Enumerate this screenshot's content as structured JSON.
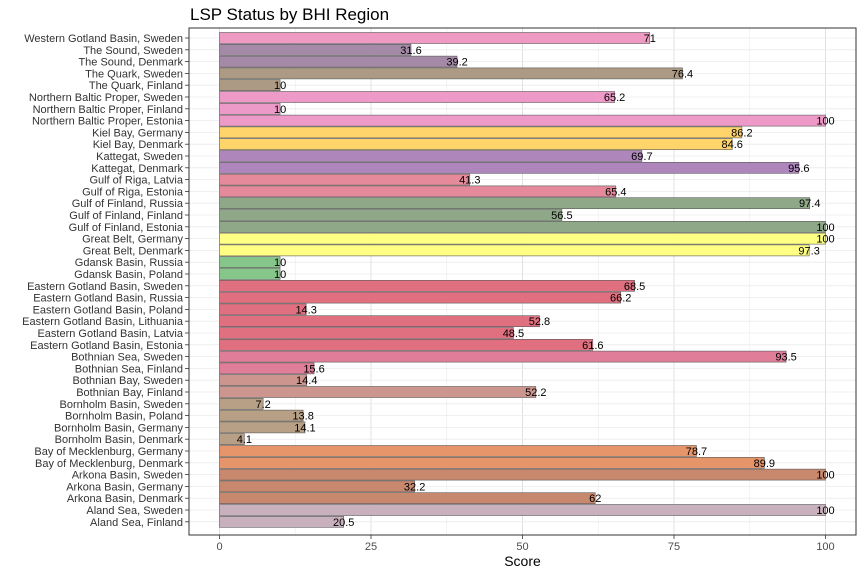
{
  "chart_data": {
    "type": "bar",
    "orientation": "horizontal",
    "title": "LSP Status by BHI Region",
    "xlabel": "Score",
    "ylabel": "",
    "xlim": [
      0,
      100
    ],
    "x_ticks": [
      0,
      25,
      50,
      75,
      100
    ],
    "grid": true,
    "legend": "none",
    "categories": [
      "Western Gotland Basin, Sweden",
      "The Sound, Sweden",
      "The Sound, Denmark",
      "The Quark, Sweden",
      "The Quark, Finland",
      "Northern Baltic Proper, Sweden",
      "Northern Baltic Proper, Finland",
      "Northern Baltic Proper, Estonia",
      "Kiel Bay, Germany",
      "Kiel Bay, Denmark",
      "Kattegat, Sweden",
      "Kattegat, Denmark",
      "Gulf of Riga, Latvia",
      "Gulf of Riga, Estonia",
      "Gulf of Finland, Russia",
      "Gulf of Finland, Finland",
      "Gulf of Finland, Estonia",
      "Great Belt, Germany",
      "Great Belt, Denmark",
      "Gdansk Basin, Russia",
      "Gdansk Basin, Poland",
      "Eastern Gotland Basin, Sweden",
      "Eastern Gotland Basin, Russia",
      "Eastern Gotland Basin, Poland",
      "Eastern Gotland Basin, Lithuania",
      "Eastern Gotland Basin, Latvia",
      "Eastern Gotland Basin, Estonia",
      "Bothnian Sea, Sweden",
      "Bothnian Sea, Finland",
      "Bothnian Bay, Sweden",
      "Bothnian Bay, Finland",
      "Bornholm Basin, Sweden",
      "Bornholm Basin, Poland",
      "Bornholm Basin, Germany",
      "Bornholm Basin, Denmark",
      "Bay of Mecklenburg, Germany",
      "Bay of Mecklenburg, Denmark",
      "Arkona Basin, Sweden",
      "Arkona Basin, Germany",
      "Arkona Basin, Denmark",
      "Aland Sea, Sweden",
      "Aland Sea, Finland"
    ],
    "values": [
      71,
      31.6,
      39.2,
      76.4,
      10,
      65.2,
      10,
      100,
      86.2,
      84.6,
      69.7,
      95.6,
      41.3,
      65.4,
      97.4,
      56.5,
      100,
      100,
      97.3,
      10,
      10,
      68.5,
      66.2,
      14.3,
      52.8,
      48.5,
      61.6,
      93.5,
      15.6,
      14.4,
      52.2,
      7.2,
      13.8,
      14.1,
      4.1,
      78.7,
      89.9,
      100,
      32.2,
      62,
      100,
      20.5
    ],
    "value_labels": [
      "71",
      "31.6",
      "39.2",
      "76.4",
      "10",
      "65.2",
      "10",
      "100",
      "86.2",
      "84.6",
      "69.7",
      "95.6",
      "41.3",
      "65.4",
      "97.4",
      "56.5",
      "100",
      "100",
      "97.3",
      "10",
      "10",
      "68.5",
      "66.2",
      "14.3",
      "52.8",
      "48.5",
      "61.6",
      "93.5",
      "15.6",
      "14.4",
      "52.2",
      "7.2",
      "13.8",
      "14.1",
      "4.1",
      "78.7",
      "89.9",
      "100",
      "32.2",
      "62",
      "100",
      "20.5"
    ],
    "colors": [
      "#ee9ac2",
      "#a48aa6",
      "#a48aa6",
      "#ad9a84",
      "#ad9a84",
      "#ee9ac8",
      "#ee9ac8",
      "#ee9ac8",
      "#ffd46a",
      "#ffd46a",
      "#ae86bc",
      "#ae86bc",
      "#e48a9a",
      "#e48a9a",
      "#8fa888",
      "#8fa888",
      "#8fa888",
      "#ffff84",
      "#ffff84",
      "#86c68a",
      "#86c68a",
      "#e07080",
      "#e07080",
      "#e07080",
      "#e07080",
      "#e07080",
      "#e07080",
      "#e07e9a",
      "#e07e9a",
      "#cc968e",
      "#cc968e",
      "#b8a086",
      "#b8a086",
      "#b8a086",
      "#b8a086",
      "#e6956a",
      "#e6956a",
      "#c8886e",
      "#c8886e",
      "#c8886e",
      "#c8b0bc",
      "#c8b0bc"
    ]
  }
}
